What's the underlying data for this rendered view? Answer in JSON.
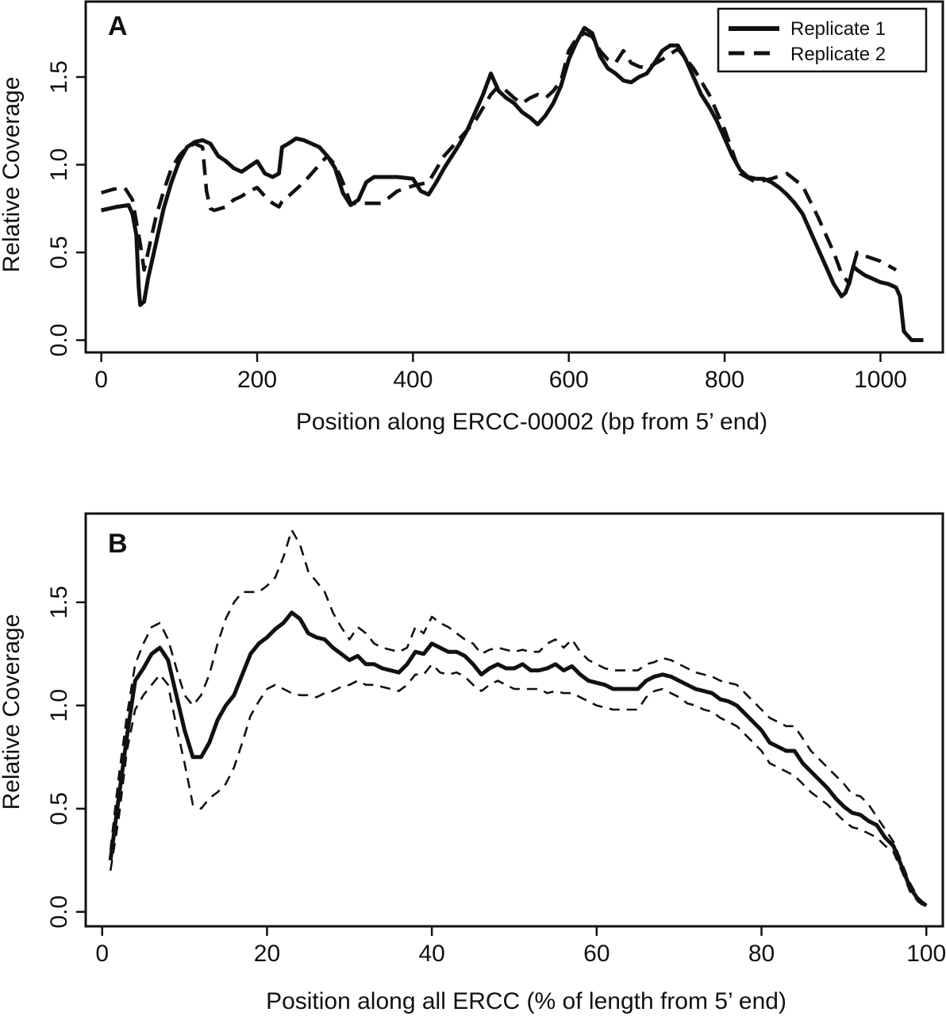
{
  "chart_data": [
    {
      "type": "line",
      "panel_label": "A",
      "xlabel": "Position along ERCC-00002 (bp from 5’ end)",
      "ylabel": "Relative Coverage",
      "xlim": [
        -20,
        1080
      ],
      "ylim": [
        -0.07,
        1.93
      ],
      "xticks": [
        0,
        200,
        400,
        600,
        800,
        1000
      ],
      "yticks": [
        0.0,
        0.5,
        1.0,
        1.5
      ],
      "xtick_labels": [
        "0",
        "200",
        "400",
        "600",
        "800",
        "1000"
      ],
      "ytick_labels": [
        "0.0",
        "0.5",
        "1.0",
        "1.5"
      ],
      "legend": {
        "position": "top-right",
        "entries": [
          {
            "label": "Replicate 1",
            "style": "solid"
          },
          {
            "label": "Replicate 2",
            "style": "dashed"
          }
        ]
      },
      "series": [
        {
          "name": "Replicate 1",
          "style": "solid",
          "x": [
            0,
            20,
            35,
            40,
            45,
            48,
            50,
            55,
            60,
            70,
            80,
            90,
            100,
            110,
            120,
            130,
            140,
            150,
            160,
            170,
            180,
            190,
            200,
            210,
            220,
            228,
            232,
            240,
            250,
            260,
            270,
            280,
            290,
            300,
            310,
            320,
            330,
            340,
            350,
            360,
            380,
            400,
            410,
            420,
            430,
            440,
            450,
            460,
            470,
            480,
            490,
            500,
            510,
            520,
            530,
            540,
            550,
            560,
            570,
            580,
            590,
            600,
            610,
            620,
            630,
            640,
            650,
            660,
            670,
            680,
            690,
            700,
            710,
            720,
            730,
            740,
            750,
            760,
            770,
            780,
            790,
            800,
            810,
            820,
            830,
            840,
            850,
            860,
            870,
            880,
            890,
            900,
            910,
            920,
            930,
            940,
            950,
            955,
            960,
            965,
            970,
            980,
            990,
            1000,
            1010,
            1020,
            1025,
            1030,
            1040,
            1055
          ],
          "values": [
            0.74,
            0.76,
            0.77,
            0.72,
            0.6,
            0.3,
            0.2,
            0.22,
            0.35,
            0.55,
            0.75,
            0.9,
            1.02,
            1.1,
            1.13,
            1.14,
            1.12,
            1.05,
            1.02,
            0.98,
            0.96,
            0.99,
            1.02,
            0.95,
            0.93,
            0.95,
            1.1,
            1.12,
            1.15,
            1.14,
            1.12,
            1.1,
            1.05,
            0.98,
            0.84,
            0.77,
            0.8,
            0.9,
            0.93,
            0.93,
            0.93,
            0.92,
            0.85,
            0.83,
            0.9,
            0.98,
            1.05,
            1.12,
            1.2,
            1.3,
            1.4,
            1.52,
            1.42,
            1.38,
            1.35,
            1.3,
            1.27,
            1.23,
            1.28,
            1.35,
            1.45,
            1.6,
            1.7,
            1.78,
            1.75,
            1.62,
            1.55,
            1.52,
            1.48,
            1.47,
            1.5,
            1.52,
            1.58,
            1.65,
            1.68,
            1.68,
            1.6,
            1.5,
            1.4,
            1.33,
            1.25,
            1.15,
            1.05,
            0.97,
            0.93,
            0.92,
            0.92,
            0.9,
            0.87,
            0.83,
            0.78,
            0.72,
            0.62,
            0.52,
            0.42,
            0.32,
            0.25,
            0.27,
            0.33,
            0.42,
            0.4,
            0.37,
            0.35,
            0.33,
            0.32,
            0.3,
            0.25,
            0.05,
            0.0,
            0.0
          ]
        },
        {
          "name": "Replicate 2",
          "style": "dashed",
          "x": [
            0,
            15,
            30,
            40,
            50,
            55,
            60,
            70,
            80,
            90,
            100,
            110,
            120,
            130,
            135,
            140,
            145,
            160,
            170,
            180,
            190,
            200,
            210,
            220,
            228,
            232,
            240,
            250,
            260,
            270,
            280,
            290,
            300,
            310,
            320,
            340,
            360,
            380,
            400,
            420,
            440,
            460,
            480,
            500,
            510,
            520,
            530,
            540,
            550,
            560,
            570,
            580,
            590,
            600,
            610,
            620,
            630,
            640,
            650,
            660,
            670,
            680,
            690,
            700,
            720,
            740,
            760,
            780,
            800,
            820,
            840,
            860,
            880,
            900,
            920,
            940,
            950,
            960,
            965,
            970,
            980,
            1000,
            1020
          ],
          "values": [
            0.84,
            0.86,
            0.87,
            0.8,
            0.55,
            0.4,
            0.5,
            0.7,
            0.85,
            0.98,
            1.05,
            1.1,
            1.12,
            1.1,
            0.85,
            0.75,
            0.74,
            0.76,
            0.8,
            0.82,
            0.85,
            0.87,
            0.82,
            0.78,
            0.76,
            0.79,
            0.82,
            0.86,
            0.9,
            0.95,
            1.0,
            1.05,
            1.0,
            0.9,
            0.78,
            0.78,
            0.78,
            0.85,
            0.88,
            0.9,
            1.05,
            1.15,
            1.25,
            1.4,
            1.45,
            1.42,
            1.38,
            1.35,
            1.38,
            1.4,
            1.38,
            1.42,
            1.48,
            1.65,
            1.72,
            1.75,
            1.73,
            1.65,
            1.6,
            1.58,
            1.65,
            1.58,
            1.56,
            1.55,
            1.6,
            1.66,
            1.55,
            1.4,
            1.2,
            0.95,
            0.9,
            0.92,
            0.95,
            0.88,
            0.7,
            0.5,
            0.38,
            0.32,
            0.42,
            0.5,
            0.48,
            0.45,
            0.4
          ]
        }
      ]
    },
    {
      "type": "line",
      "panel_label": "B",
      "xlabel": "Position along all ERCC (% of length from 5’ end)",
      "ylabel": "Relative Coverage",
      "xlim": [
        -2,
        102
      ],
      "ylim": [
        -0.07,
        1.93
      ],
      "xticks": [
        0,
        20,
        40,
        60,
        80,
        100
      ],
      "yticks": [
        0.0,
        0.5,
        1.0,
        1.5
      ],
      "xtick_labels": [
        "0",
        "20",
        "40",
        "60",
        "80",
        "100"
      ],
      "ytick_labels": [
        "0.0",
        "0.5",
        "1.0",
        "1.5"
      ],
      "series": [
        {
          "name": "",
          "style": "solid",
          "x": [
            1,
            2,
            3,
            4,
            5,
            6,
            7,
            8,
            9,
            10,
            11,
            12,
            13,
            14,
            15,
            16,
            17,
            18,
            19,
            20,
            21,
            22,
            23,
            24,
            25,
            26,
            27,
            28,
            29,
            30,
            31,
            32,
            33,
            34,
            35,
            36,
            37,
            38,
            39,
            40,
            41,
            42,
            43,
            44,
            45,
            46,
            47,
            48,
            49,
            50,
            51,
            52,
            53,
            54,
            55,
            56,
            57,
            58,
            59,
            60,
            61,
            62,
            63,
            64,
            65,
            66,
            67,
            68,
            69,
            70,
            71,
            72,
            73,
            74,
            75,
            76,
            77,
            78,
            79,
            80,
            81,
            82,
            83,
            84,
            85,
            86,
            87,
            88,
            89,
            90,
            91,
            92,
            93,
            94,
            95,
            96,
            97,
            98,
            99,
            100
          ],
          "values": [
            0.25,
            0.55,
            0.85,
            1.12,
            1.18,
            1.25,
            1.28,
            1.22,
            1.05,
            0.88,
            0.75,
            0.75,
            0.82,
            0.93,
            1.0,
            1.05,
            1.15,
            1.25,
            1.3,
            1.33,
            1.37,
            1.4,
            1.45,
            1.42,
            1.35,
            1.33,
            1.32,
            1.28,
            1.25,
            1.22,
            1.24,
            1.2,
            1.2,
            1.18,
            1.17,
            1.16,
            1.2,
            1.26,
            1.25,
            1.3,
            1.28,
            1.26,
            1.26,
            1.24,
            1.2,
            1.15,
            1.18,
            1.2,
            1.18,
            1.18,
            1.2,
            1.17,
            1.17,
            1.18,
            1.2,
            1.17,
            1.19,
            1.15,
            1.12,
            1.11,
            1.1,
            1.08,
            1.08,
            1.08,
            1.08,
            1.12,
            1.14,
            1.15,
            1.14,
            1.12,
            1.1,
            1.08,
            1.07,
            1.06,
            1.03,
            1.02,
            1.0,
            0.96,
            0.92,
            0.88,
            0.82,
            0.8,
            0.78,
            0.78,
            0.72,
            0.68,
            0.64,
            0.6,
            0.55,
            0.51,
            0.48,
            0.47,
            0.44,
            0.42,
            0.36,
            0.32,
            0.22,
            0.12,
            0.06,
            0.03
          ]
        },
        {
          "name": "",
          "style": "dashed-thin",
          "x": [
            1,
            2,
            3,
            4,
            5,
            6,
            7,
            8,
            9,
            10,
            11,
            12,
            13,
            14,
            15,
            16,
            17,
            18,
            19,
            20,
            21,
            22,
            23,
            24,
            25,
            26,
            27,
            28,
            29,
            30,
            31,
            32,
            33,
            34,
            35,
            36,
            37,
            38,
            39,
            40,
            41,
            42,
            43,
            44,
            45,
            46,
            47,
            48,
            49,
            50,
            51,
            52,
            53,
            54,
            55,
            56,
            57,
            58,
            59,
            60,
            61,
            62,
            63,
            64,
            65,
            66,
            67,
            68,
            69,
            70,
            71,
            72,
            73,
            74,
            75,
            76,
            77,
            78,
            79,
            80,
            81,
            82,
            83,
            84,
            85,
            86,
            87,
            88,
            89,
            90,
            91,
            92,
            93,
            94,
            95,
            96,
            97,
            98,
            99,
            100
          ],
          "values": [
            0.3,
            0.65,
            0.95,
            1.2,
            1.3,
            1.38,
            1.4,
            1.32,
            1.18,
            1.05,
            1.0,
            1.05,
            1.15,
            1.3,
            1.42,
            1.5,
            1.55,
            1.55,
            1.55,
            1.58,
            1.62,
            1.72,
            1.85,
            1.78,
            1.65,
            1.6,
            1.55,
            1.45,
            1.38,
            1.32,
            1.38,
            1.35,
            1.3,
            1.28,
            1.27,
            1.26,
            1.28,
            1.38,
            1.35,
            1.43,
            1.4,
            1.38,
            1.35,
            1.32,
            1.3,
            1.25,
            1.27,
            1.28,
            1.27,
            1.26,
            1.27,
            1.26,
            1.26,
            1.3,
            1.32,
            1.28,
            1.32,
            1.26,
            1.22,
            1.2,
            1.18,
            1.17,
            1.17,
            1.17,
            1.17,
            1.2,
            1.21,
            1.23,
            1.22,
            1.2,
            1.18,
            1.16,
            1.15,
            1.14,
            1.12,
            1.11,
            1.1,
            1.06,
            1.02,
            0.98,
            0.94,
            0.92,
            0.9,
            0.9,
            0.84,
            0.78,
            0.74,
            0.7,
            0.66,
            0.62,
            0.57,
            0.56,
            0.52,
            0.46,
            0.4,
            0.34,
            0.24,
            0.14,
            0.07,
            0.03
          ]
        },
        {
          "name": "",
          "style": "dashed-thin",
          "x": [
            1,
            2,
            3,
            4,
            5,
            6,
            7,
            8,
            9,
            10,
            11,
            12,
            13,
            14,
            15,
            16,
            17,
            18,
            19,
            20,
            21,
            22,
            23,
            24,
            25,
            26,
            27,
            28,
            29,
            30,
            31,
            32,
            33,
            34,
            35,
            36,
            37,
            38,
            39,
            40,
            41,
            42,
            43,
            44,
            45,
            46,
            47,
            48,
            49,
            50,
            51,
            52,
            53,
            54,
            55,
            56,
            57,
            58,
            59,
            60,
            61,
            62,
            63,
            64,
            65,
            66,
            67,
            68,
            69,
            70,
            71,
            72,
            73,
            74,
            75,
            76,
            77,
            78,
            79,
            80,
            81,
            82,
            83,
            84,
            85,
            86,
            87,
            88,
            89,
            90,
            91,
            92,
            93,
            94,
            95,
            96,
            97,
            98,
            99,
            100
          ],
          "values": [
            0.2,
            0.45,
            0.78,
            0.98,
            1.05,
            1.1,
            1.15,
            1.1,
            0.9,
            0.72,
            0.52,
            0.5,
            0.55,
            0.58,
            0.62,
            0.7,
            0.82,
            0.95,
            1.02,
            1.08,
            1.1,
            1.08,
            1.06,
            1.05,
            1.05,
            1.04,
            1.06,
            1.07,
            1.09,
            1.1,
            1.12,
            1.1,
            1.1,
            1.09,
            1.08,
            1.07,
            1.1,
            1.15,
            1.15,
            1.2,
            1.16,
            1.15,
            1.16,
            1.14,
            1.1,
            1.07,
            1.1,
            1.12,
            1.1,
            1.08,
            1.08,
            1.08,
            1.08,
            1.06,
            1.07,
            1.06,
            1.06,
            1.04,
            1.02,
            1.0,
            0.99,
            0.98,
            0.98,
            0.98,
            0.98,
            1.04,
            1.07,
            1.08,
            1.06,
            1.04,
            1.01,
            1.0,
            0.98,
            0.97,
            0.94,
            0.92,
            0.9,
            0.86,
            0.82,
            0.78,
            0.72,
            0.7,
            0.68,
            0.66,
            0.62,
            0.58,
            0.55,
            0.52,
            0.48,
            0.44,
            0.41,
            0.4,
            0.38,
            0.36,
            0.32,
            0.29,
            0.2,
            0.1,
            0.05,
            0.02
          ]
        }
      ]
    }
  ]
}
